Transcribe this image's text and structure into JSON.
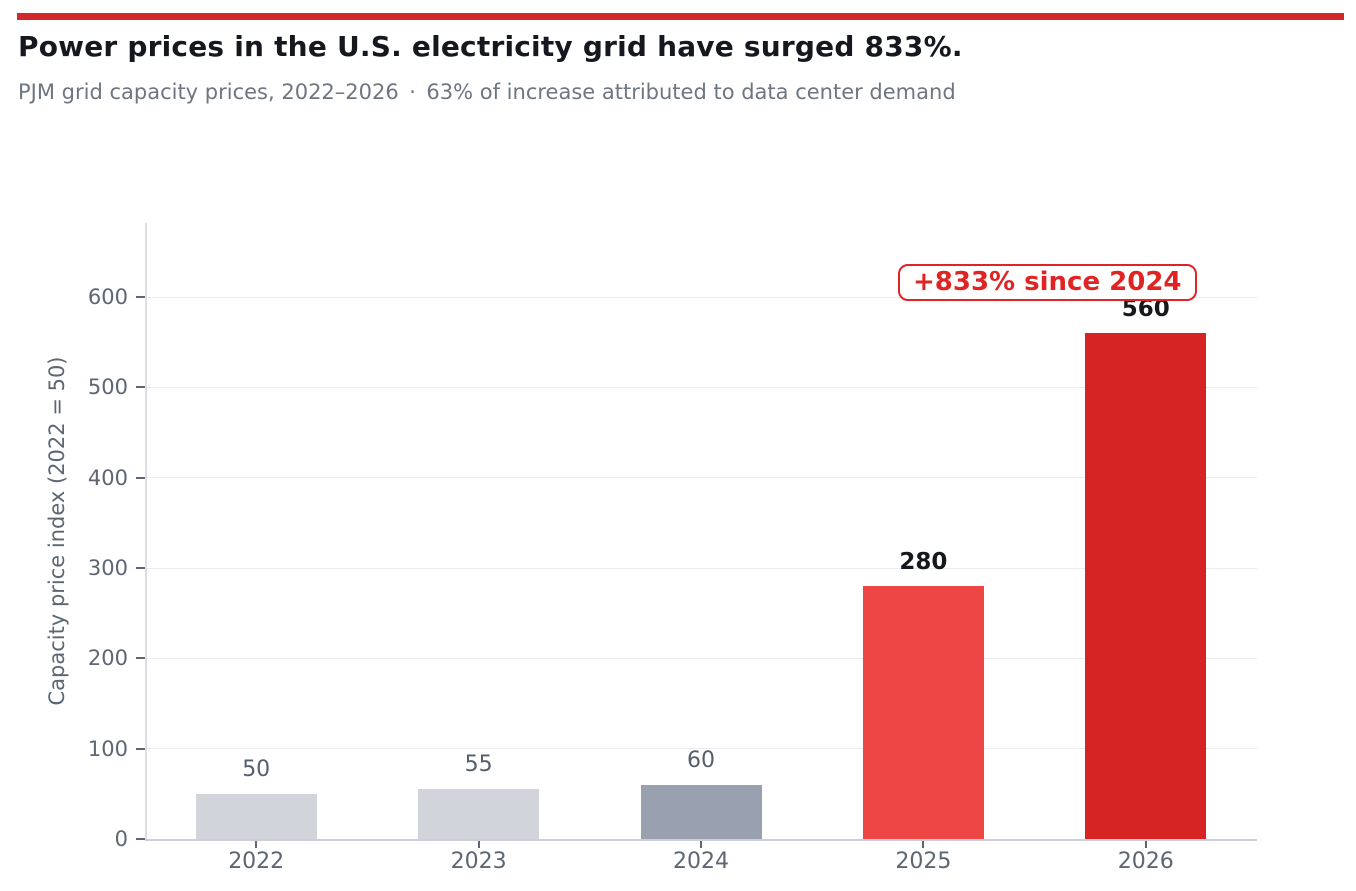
{
  "chart_data": {
    "type": "bar",
    "title": "Power prices in the U.S. electricity grid have surged 833%.",
    "subtitle": "PJM grid capacity prices, 2022–2026 · 63% of increase attributed to data center demand",
    "categories": [
      "2022",
      "2023",
      "2024",
      "2025",
      "2026"
    ],
    "values": [
      50,
      55,
      60,
      280,
      560
    ],
    "value_label_emphasis": [
      false,
      false,
      false,
      true,
      true
    ],
    "bar_colors": [
      "#d2d4dc",
      "#d2d4dc",
      "#99a1b0",
      "#ee4545",
      "#d62424"
    ],
    "xlabel": "",
    "ylabel": "Capacity price index (2022 = 50)",
    "ylim": [
      0,
      680
    ],
    "yticks": [
      0,
      100,
      200,
      300,
      400,
      500,
      600
    ],
    "grid": "horizontal",
    "legend": "none",
    "annotation": {
      "text": "+833% since 2024",
      "color": "#e02424"
    },
    "accent_rule_color": "#d2292c"
  }
}
